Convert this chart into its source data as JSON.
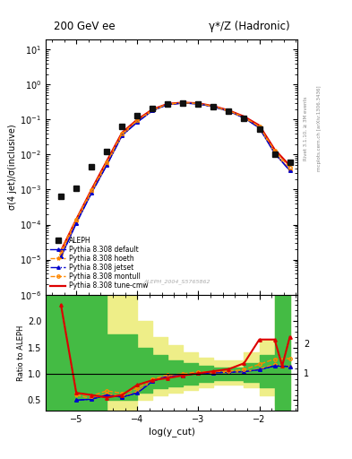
{
  "title_left": "200 GeV ee",
  "title_right": "γ*/Z (Hadronic)",
  "ylabel_main": "σ(4 jet)/σ(inclusive)",
  "ylabel_ratio": "Ratio to ALEPH",
  "xlabel": "log(y_cut)",
  "right_label_top": "Rivet 3.1.10, ≥ 3M events",
  "right_label_bottom": "mcplots.cern.ch [arXiv:1306.3436]",
  "watermark": "ALEPH_2004_S5765862",
  "aleph_x": [
    -5.25,
    -5.0,
    -4.75,
    -4.5,
    -4.25,
    -4.0,
    -3.75,
    -3.5,
    -3.25,
    -3.0,
    -2.75,
    -2.5,
    -2.25,
    -2.0,
    -1.75,
    -1.5
  ],
  "aleph_y": [
    0.00065,
    0.0011,
    0.0045,
    0.012,
    0.065,
    0.13,
    0.21,
    0.285,
    0.3,
    0.28,
    0.23,
    0.17,
    0.11,
    0.055,
    0.01,
    0.006
  ],
  "default_x": [
    -5.25,
    -5.0,
    -4.75,
    -4.5,
    -4.25,
    -4.0,
    -3.75,
    -3.5,
    -3.25,
    -3.0,
    -2.75,
    -2.5,
    -2.25,
    -2.0,
    -1.75,
    -1.5
  ],
  "default_y": [
    1.2e-05,
    0.00011,
    0.0008,
    0.005,
    0.035,
    0.085,
    0.18,
    0.27,
    0.295,
    0.282,
    0.232,
    0.172,
    0.112,
    0.058,
    0.011,
    0.0035
  ],
  "hoeth_x": [
    -5.25,
    -5.0,
    -4.75,
    -4.5,
    -4.25,
    -4.0,
    -3.75,
    -3.5,
    -3.25,
    -3.0,
    -2.75,
    -2.5,
    -2.25,
    -2.0,
    -1.75,
    -1.5
  ],
  "hoeth_y": [
    1.4e-05,
    0.00012,
    0.00085,
    0.0052,
    0.036,
    0.088,
    0.182,
    0.272,
    0.296,
    0.283,
    0.233,
    0.173,
    0.113,
    0.059,
    0.0115,
    0.0036
  ],
  "jetset_x": [
    -5.25,
    -5.0,
    -4.75,
    -4.5,
    -4.25,
    -4.0,
    -3.75,
    -3.5,
    -3.25,
    -3.0,
    -2.75,
    -2.5,
    -2.25,
    -2.0,
    -1.75,
    -1.5
  ],
  "jetset_y": [
    1.2e-05,
    0.00011,
    0.0008,
    0.005,
    0.035,
    0.085,
    0.18,
    0.27,
    0.295,
    0.282,
    0.232,
    0.172,
    0.112,
    0.058,
    0.011,
    0.0035
  ],
  "montull_x": [
    -5.25,
    -5.0,
    -4.75,
    -4.5,
    -4.25,
    -4.0,
    -3.75,
    -3.5,
    -3.25,
    -3.0,
    -2.75,
    -2.5,
    -2.25,
    -2.0,
    -1.75,
    -1.5
  ],
  "montull_y": [
    1.8e-05,
    0.00014,
    0.00095,
    0.006,
    0.04,
    0.095,
    0.19,
    0.278,
    0.302,
    0.288,
    0.238,
    0.178,
    0.118,
    0.063,
    0.013,
    0.0042
  ],
  "tunecmw_x": [
    -5.25,
    -5.0,
    -4.75,
    -4.5,
    -4.25,
    -4.0,
    -3.75,
    -3.5,
    -3.25,
    -3.0,
    -2.75,
    -2.5,
    -2.25,
    -2.0,
    -1.75,
    -1.5
  ],
  "tunecmw_y": [
    1.8e-05,
    0.00014,
    0.001,
    0.0065,
    0.042,
    0.1,
    0.195,
    0.282,
    0.305,
    0.292,
    0.242,
    0.182,
    0.122,
    0.068,
    0.014,
    0.0048
  ],
  "ratio_tunecmw_x": [
    -5.25,
    -5.0,
    -4.75,
    -4.5,
    -4.25,
    -4.0,
    -3.75,
    -3.5,
    -3.25,
    -3.0,
    -2.75,
    -2.5,
    -2.25,
    -2.0,
    -1.75,
    -1.625,
    -1.5
  ],
  "ratio_tunecmw": [
    2.3,
    0.64,
    0.6,
    0.55,
    0.6,
    0.79,
    0.88,
    0.92,
    0.97,
    1.01,
    1.05,
    1.09,
    1.2,
    1.65,
    1.65,
    1.15,
    1.7
  ],
  "ratio_default_x": [
    -5.0,
    -4.75,
    -4.5,
    -4.25,
    -4.0,
    -3.75,
    -3.5,
    -3.25,
    -3.0,
    -2.75,
    -2.5,
    -2.25,
    -2.0,
    -1.75,
    -1.5
  ],
  "ratio_default": [
    0.5,
    0.52,
    0.6,
    0.56,
    0.64,
    0.86,
    0.96,
    0.97,
    1.01,
    1.02,
    1.03,
    1.04,
    1.08,
    1.15,
    1.14
  ],
  "ratio_hoeth_x": [
    -5.0,
    -4.75,
    -4.5,
    -4.25,
    -4.0,
    -3.75,
    -3.5,
    -3.25,
    -3.0,
    -2.75,
    -2.5,
    -2.25,
    -2.0,
    -1.75,
    -1.5
  ],
  "ratio_hoeth": [
    0.6,
    0.53,
    0.62,
    0.58,
    0.66,
    0.87,
    0.97,
    0.97,
    1.01,
    1.02,
    1.03,
    1.04,
    1.09,
    1.18,
    1.14
  ],
  "ratio_jetset_x": [
    -5.0,
    -4.75,
    -4.5,
    -4.25,
    -4.0,
    -3.75,
    -3.5,
    -3.25,
    -3.0,
    -2.75,
    -2.5,
    -2.25,
    -2.0,
    -1.75,
    -1.5
  ],
  "ratio_jetset": [
    0.5,
    0.52,
    0.6,
    0.56,
    0.64,
    0.86,
    0.96,
    0.97,
    1.01,
    1.02,
    1.03,
    1.04,
    1.08,
    1.15,
    1.14
  ],
  "ratio_montull_x": [
    -5.0,
    -4.75,
    -4.5,
    -4.25,
    -4.0,
    -3.75,
    -3.5,
    -3.25,
    -3.0,
    -2.75,
    -2.5,
    -2.25,
    -2.0,
    -1.75,
    -1.5
  ],
  "ratio_montull": [
    0.63,
    0.58,
    0.68,
    0.63,
    0.72,
    0.9,
    0.98,
    1.0,
    1.04,
    1.04,
    1.05,
    1.08,
    1.18,
    1.28,
    1.29
  ],
  "yellow_bins_x": [
    -5.5,
    -5.0,
    -4.75,
    -4.5,
    -4.25,
    -4.0,
    -3.75,
    -3.5,
    -3.25,
    -3.0,
    -2.75,
    -2.5,
    -2.25,
    -2.0,
    -1.75,
    -1.5
  ],
  "yellow_bins_lo": [
    0.0,
    0.0,
    0.0,
    0.3,
    0.3,
    0.5,
    0.6,
    0.65,
    0.7,
    0.75,
    0.8,
    0.8,
    0.75,
    0.6,
    0.4,
    0.0
  ],
  "yellow_bins_hi": [
    3.0,
    3.0,
    3.0,
    2.5,
    2.5,
    2.0,
    1.7,
    1.55,
    1.4,
    1.3,
    1.25,
    1.25,
    1.4,
    1.65,
    2.5,
    3.0
  ],
  "green_bins_x": [
    -5.5,
    -5.0,
    -4.75,
    -4.5,
    -4.25,
    -4.0,
    -3.75,
    -3.5,
    -3.25,
    -3.0,
    -2.75,
    -2.5,
    -2.25,
    -2.0,
    -1.75,
    -1.5
  ],
  "green_bins_lo": [
    0.0,
    0.0,
    0.0,
    0.5,
    0.5,
    0.65,
    0.72,
    0.77,
    0.8,
    0.85,
    0.88,
    0.88,
    0.85,
    0.75,
    0.0,
    0.0
  ],
  "green_bins_hi": [
    3.0,
    3.0,
    3.0,
    1.75,
    1.75,
    1.5,
    1.35,
    1.25,
    1.2,
    1.15,
    1.12,
    1.12,
    1.2,
    1.35,
    3.0,
    3.0
  ],
  "xlim": [
    -5.5,
    -1.375
  ],
  "ylim_main": [
    1e-06,
    20
  ],
  "ylim_ratio": [
    0.3,
    2.5
  ],
  "color_default": "#0000cc",
  "color_hoeth": "#ff8800",
  "color_jetset": "#0000cc",
  "color_montull": "#ff8800",
  "color_tunecmw": "#dd0000",
  "color_aleph": "#111111",
  "green_color": "#44bb44",
  "yellow_color": "#eeee88"
}
